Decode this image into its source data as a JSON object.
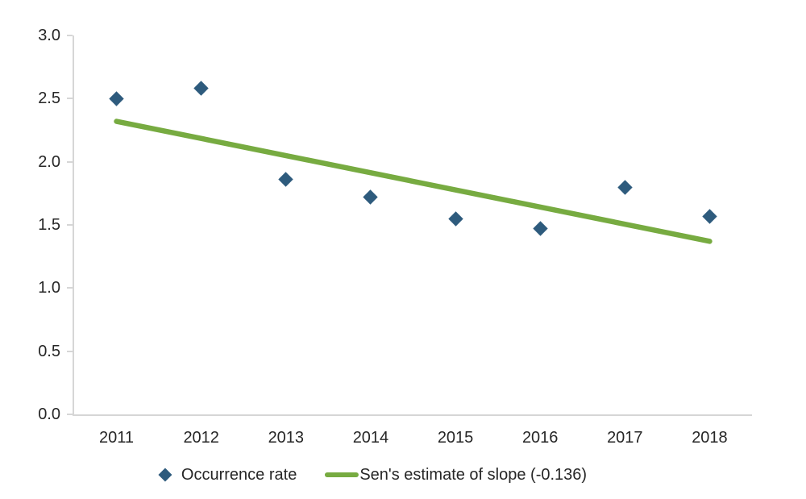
{
  "colors": {
    "marker": "#2E5B7D",
    "trend_line": "#77AB41",
    "axis_line": "#D6D6D6",
    "text": "#262626",
    "background": "#FFFFFF"
  },
  "legend": {
    "series1_label": "Occurrence rate",
    "series2_label": "Sen's estimate of slope (-0.136)"
  },
  "chart_data": {
    "type": "scatter",
    "title": "",
    "xlabel": "",
    "ylabel": "",
    "categories": [
      "2011",
      "2012",
      "2013",
      "2014",
      "2015",
      "2016",
      "2017",
      "2018"
    ],
    "series": [
      {
        "name": "Occurrence rate",
        "type": "scatter",
        "marker": "diamond",
        "color": "#2E5B7D",
        "values": [
          2.5,
          2.58,
          1.86,
          1.72,
          1.55,
          1.47,
          1.8,
          1.57
        ]
      },
      {
        "name": "Sen's estimate of slope (-0.136)",
        "type": "line",
        "color": "#77AB41",
        "slope": -0.136,
        "start_value": 2.32,
        "end_value": 1.37
      }
    ],
    "ylim": [
      0.0,
      3.0
    ],
    "y_ticks": [
      "0.0",
      "0.5",
      "1.0",
      "1.5",
      "2.0",
      "2.5",
      "3.0"
    ],
    "grid": false,
    "legend_position": "bottom"
  }
}
